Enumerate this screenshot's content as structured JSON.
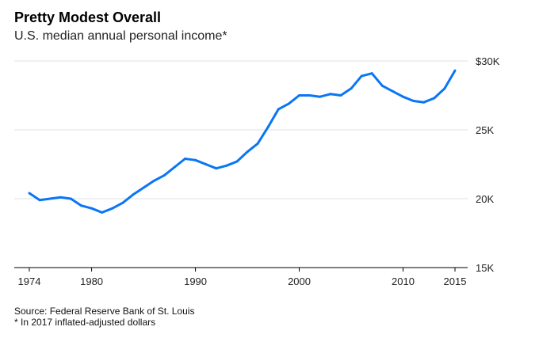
{
  "chart_data": {
    "type": "line",
    "title": "Pretty Modest Overall",
    "subtitle": "U.S. median annual personal income*",
    "xlabel": "",
    "ylabel": "",
    "xlim": [
      1974,
      2015
    ],
    "ylim": [
      15000,
      30000
    ],
    "x_ticks": [
      1974,
      1980,
      1990,
      2000,
      2010,
      2015
    ],
    "x_tick_labels": [
      "1974",
      "1980",
      "1990",
      "2000",
      "2010",
      "2015"
    ],
    "y_ticks": [
      15000,
      20000,
      25000,
      30000
    ],
    "y_tick_labels": [
      "15K",
      "20K",
      "25K",
      "$30K"
    ],
    "grid": true,
    "color": "#0a76f5",
    "series": [
      {
        "name": "Median annual personal income",
        "x": [
          1974,
          1975,
          1976,
          1977,
          1978,
          1979,
          1980,
          1981,
          1982,
          1983,
          1984,
          1985,
          1986,
          1987,
          1988,
          1989,
          1990,
          1991,
          1992,
          1993,
          1994,
          1995,
          1996,
          1997,
          1998,
          1999,
          2000,
          2001,
          2002,
          2003,
          2004,
          2005,
          2006,
          2007,
          2008,
          2009,
          2010,
          2011,
          2012,
          2013,
          2014,
          2015
        ],
        "values": [
          20400,
          19900,
          20000,
          20100,
          20000,
          19500,
          19300,
          19000,
          19300,
          19700,
          20300,
          20800,
          21300,
          21700,
          22300,
          22900,
          22800,
          22500,
          22200,
          22400,
          22700,
          23400,
          24000,
          25200,
          26500,
          26900,
          27500,
          27500,
          27400,
          27600,
          27500,
          28000,
          28900,
          29100,
          28200,
          27800,
          27400,
          27100,
          27000,
          27300,
          28000,
          29300
        ]
      }
    ]
  },
  "source": "Source: Federal Reserve Bank of St. Louis",
  "footnote": "* In 2017 inflated-adjusted dollars"
}
